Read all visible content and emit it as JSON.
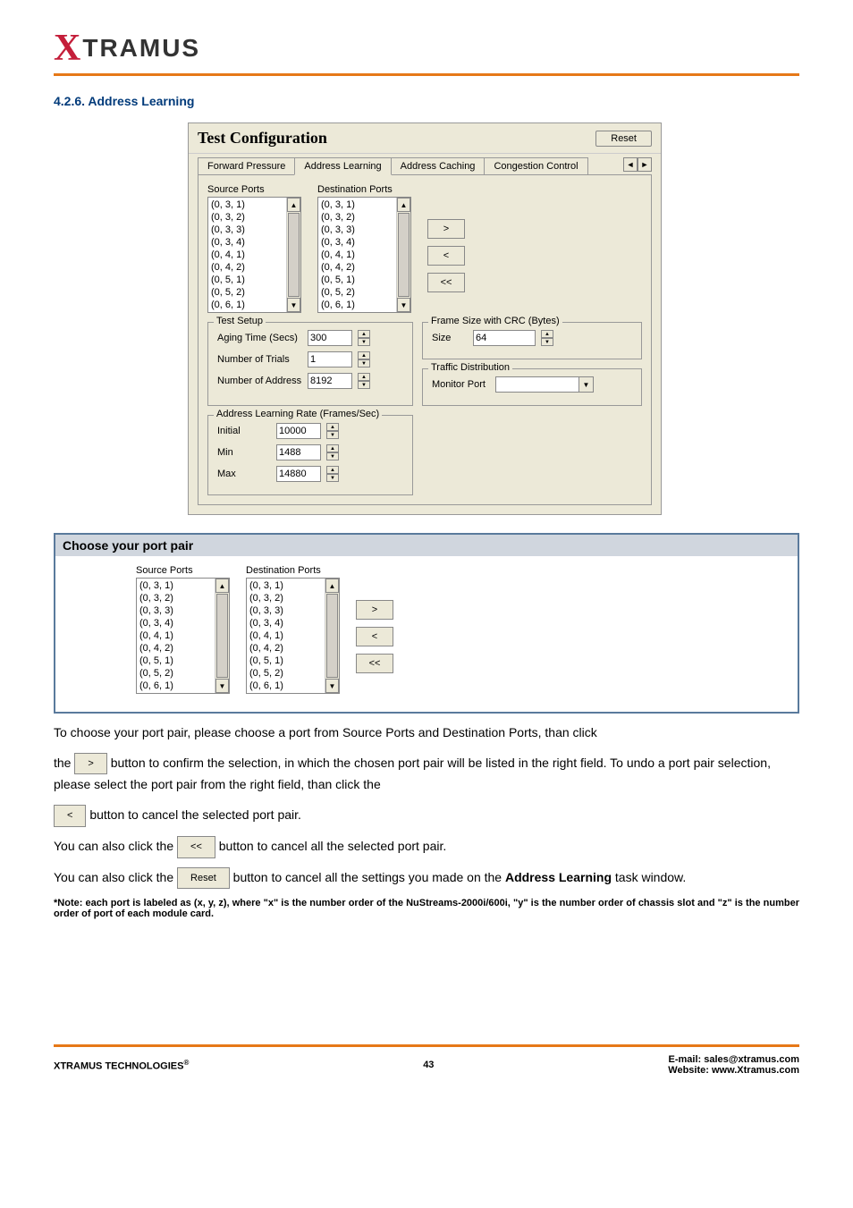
{
  "logo": {
    "x": "X",
    "text": "TRAMUS"
  },
  "section_title": "4.2.6. Address Learning",
  "config_window": {
    "title": "Test Configuration",
    "reset_label": "Reset",
    "tabs": [
      "Forward Pressure",
      "Address Learning",
      "Address Caching",
      "Congestion Control"
    ],
    "active_tab_index": 1,
    "source_ports_label": "Source Ports",
    "dest_ports_label": "Destination Ports",
    "source_ports": [
      "(0, 3, 1)",
      "(0, 3, 2)",
      "(0, 3, 3)",
      "(0, 3, 4)",
      "(0, 4, 1)",
      "(0, 4, 2)",
      "(0, 5, 1)",
      "(0, 5, 2)",
      "(0, 6, 1)"
    ],
    "dest_ports": [
      "(0, 3, 1)",
      "(0, 3, 2)",
      "(0, 3, 3)",
      "(0, 3, 4)",
      "(0, 4, 1)",
      "(0, 4, 2)",
      "(0, 5, 1)",
      "(0, 5, 2)",
      "(0, 6, 1)"
    ],
    "btn_add": ">",
    "btn_remove": "<",
    "btn_remove_all": "<<",
    "test_setup": {
      "legend": "Test Setup",
      "aging_label": "Aging Time (Secs)",
      "aging_value": "300",
      "trials_label": "Number of Trials",
      "trials_value": "1",
      "address_label": "Number of Address",
      "address_value": "8192"
    },
    "frame_size": {
      "legend": "Frame Size with CRC (Bytes)",
      "size_label": "Size",
      "size_value": "64"
    },
    "traffic": {
      "legend": "Traffic Distribution",
      "monitor_label": "Monitor Port"
    },
    "learning_rate": {
      "legend": "Address Learning Rate (Frames/Sec)",
      "initial_label": "Initial",
      "initial_value": "10000",
      "min_label": "Min",
      "min_value": "1488",
      "max_label": "Max",
      "max_value": "14880"
    }
  },
  "choose_box": {
    "header": "Choose your port pair",
    "source_label": "Source Ports",
    "dest_label": "Destination Ports",
    "ports": [
      "(0, 3, 1)",
      "(0, 3, 2)",
      "(0, 3, 3)",
      "(0, 3, 4)",
      "(0, 4, 1)",
      "(0, 4, 2)",
      "(0, 5, 1)",
      "(0, 5, 2)",
      "(0, 6, 1)"
    ]
  },
  "body": {
    "p1": "To choose your port pair, please choose a port from Source Ports and Destination Ports, than click",
    "p2a": "the ",
    "p2b": " button to confirm the selection, in which the chosen port pair will be listed in the right field. To undo a port pair selection, please select the port pair from the right field, than click the",
    "p3": " button to cancel the selected port pair.",
    "p4a": "You can also click the ",
    "p4b": " button to cancel all the selected port pair.",
    "p5a": "You can also click the ",
    "p5b": " button to cancel all the settings you made on the ",
    "p5c": "Address Learning",
    "p5d": " task window.",
    "btn_add": ">",
    "btn_remove": "<",
    "btn_remove_all": "<<",
    "btn_reset": "Reset"
  },
  "note": "*Note: each port is labeled as (x, y, z), where \"x\" is the number order of the NuStreams-2000i/600i, \"y\" is the number order of chassis slot and \"z\" is the number order of port of each module card.",
  "footer": {
    "left": "XTRAMUS TECHNOLOGIES",
    "page": "43",
    "email_label": "E-mail: ",
    "email": "sales@xtramus.com",
    "web_label": "Website: ",
    "web": "www.Xtramus.com"
  }
}
